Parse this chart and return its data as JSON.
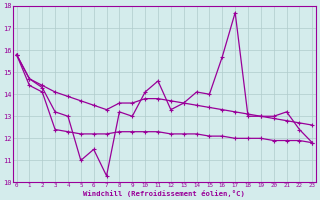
{
  "xlabel": "Windchill (Refroidissement éolien,°C)",
  "x": [
    0,
    1,
    2,
    3,
    4,
    5,
    6,
    7,
    8,
    9,
    10,
    11,
    12,
    13,
    14,
    15,
    16,
    17,
    18,
    19,
    20,
    21,
    22,
    23
  ],
  "y_main": [
    15.8,
    14.7,
    14.3,
    13.2,
    13.0,
    11.0,
    11.5,
    10.3,
    13.2,
    13.0,
    14.1,
    14.6,
    13.3,
    13.6,
    14.1,
    14.0,
    15.7,
    17.7,
    13.0,
    13.0,
    13.0,
    13.2,
    12.4,
    11.8
  ],
  "y_upper": [
    15.8,
    14.7,
    14.4,
    14.1,
    13.9,
    13.7,
    13.5,
    13.3,
    13.6,
    13.6,
    13.8,
    13.8,
    13.7,
    13.6,
    13.5,
    13.4,
    13.3,
    13.2,
    13.1,
    13.0,
    12.9,
    12.8,
    12.7,
    12.6
  ],
  "y_lower": [
    15.8,
    14.4,
    14.1,
    12.4,
    12.3,
    12.2,
    12.2,
    12.2,
    12.3,
    12.3,
    12.3,
    12.3,
    12.2,
    12.2,
    12.2,
    12.1,
    12.1,
    12.0,
    12.0,
    12.0,
    11.9,
    11.9,
    11.9,
    11.8
  ],
  "line_color": "#990099",
  "bg_color": "#d4ecec",
  "grid_color": "#b0cccc",
  "ylim": [
    10,
    18
  ],
  "yticks": [
    10,
    11,
    12,
    13,
    14,
    15,
    16,
    17,
    18
  ],
  "xlim_min": -0.3,
  "xlim_max": 23.3
}
